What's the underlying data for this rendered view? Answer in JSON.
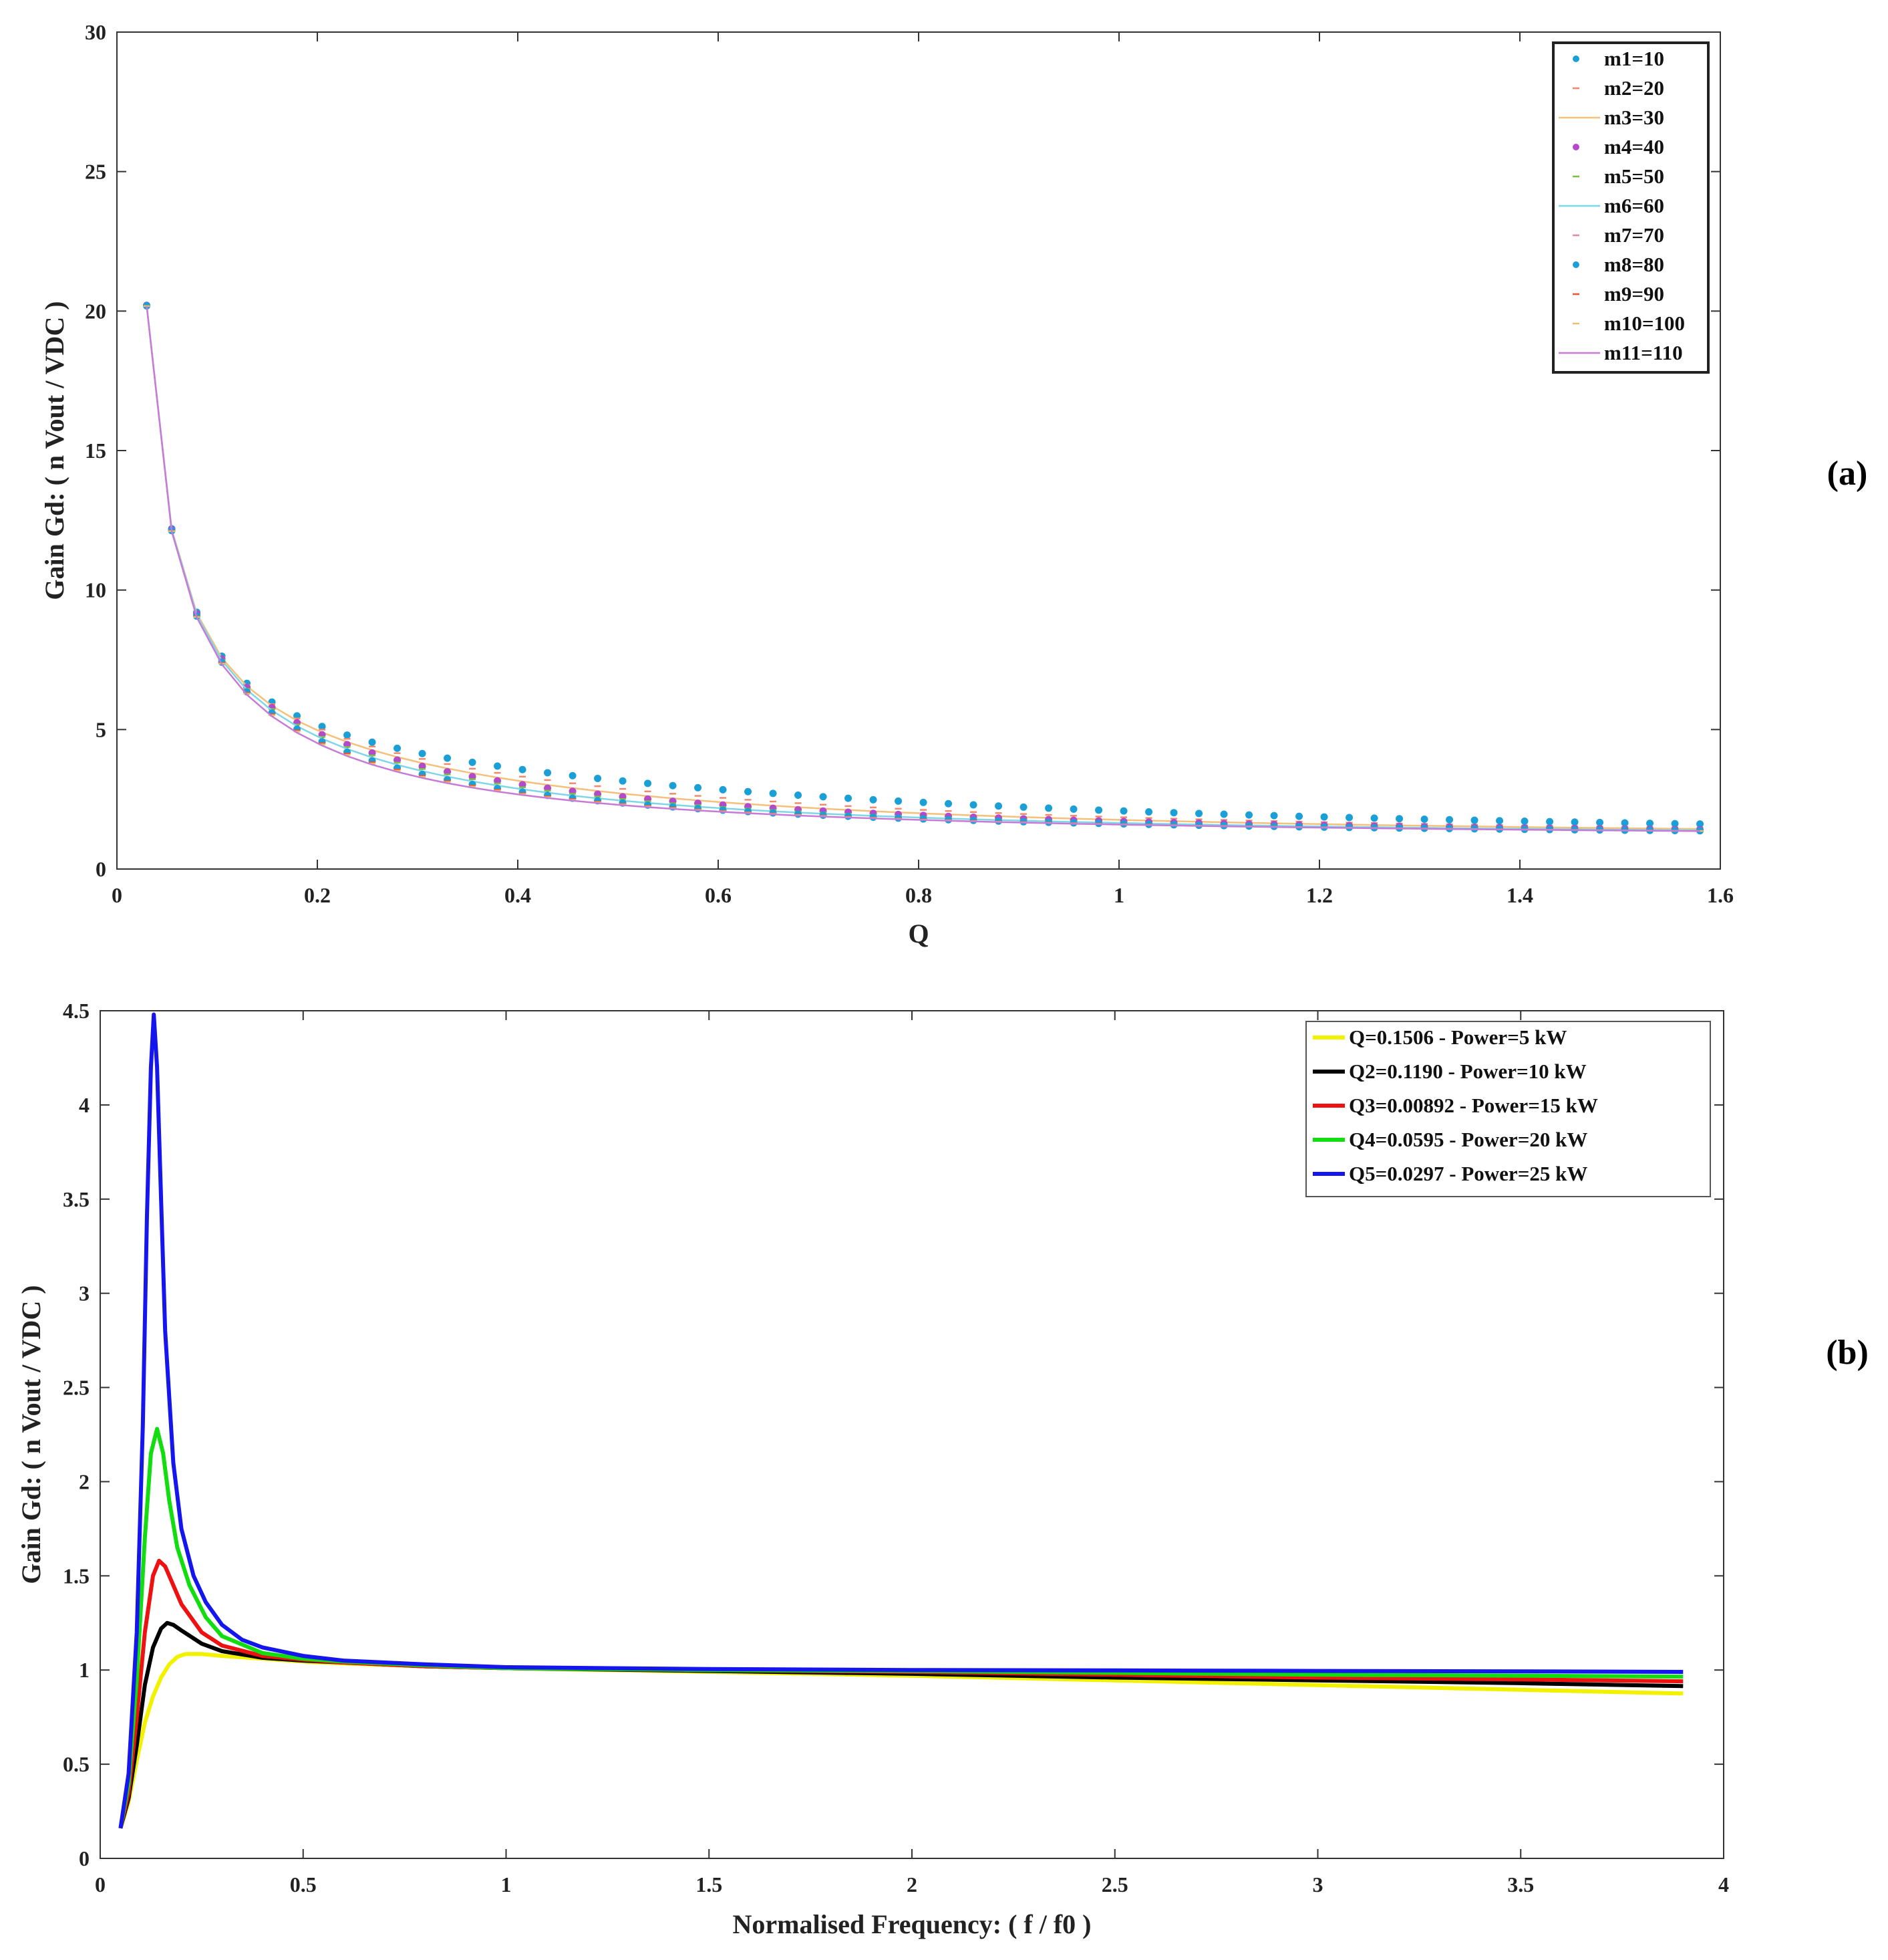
{
  "chart_data": [
    {
      "panel_label": "(a)",
      "type": "scatter",
      "xlabel": "Q",
      "ylabel": "Gain Gd: ( n Vout / VDC )",
      "xlim": [
        0,
        1.6
      ],
      "ylim": [
        0,
        30
      ],
      "xticks": [
        0,
        0.2,
        0.4,
        0.6,
        0.8,
        1,
        1.2,
        1.4,
        1.6
      ],
      "yticks": [
        0,
        5,
        10,
        15,
        20,
        25,
        30
      ],
      "xtick_labels": [
        "0",
        "0.2",
        "0.4",
        "0.6",
        "0.8",
        "1",
        "1.2",
        "1.4",
        "1.6"
      ],
      "ytick_labels": [
        "0",
        "5",
        "10",
        "15",
        "20",
        "25",
        "30"
      ],
      "legend_position": "top-right",
      "q_min": 0.0297,
      "q_step": 0.025,
      "q_count": 63,
      "series": [
        {
          "name": "m1=10",
          "m": 10,
          "marker": "dot",
          "color": "#1a9fd6"
        },
        {
          "name": "m2=20",
          "m": 20,
          "marker": "tick",
          "color": "#f08a6a"
        },
        {
          "name": "m3=30",
          "m": 30,
          "marker": "line",
          "color": "#f5c07a"
        },
        {
          "name": "m4=40",
          "m": 40,
          "marker": "dot",
          "color": "#b34ac9"
        },
        {
          "name": "m5=50",
          "m": 50,
          "marker": "tick",
          "color": "#7ac044"
        },
        {
          "name": "m6=60",
          "m": 60,
          "marker": "line",
          "color": "#7fd6e8"
        },
        {
          "name": "m7=70",
          "m": 70,
          "marker": "tick",
          "color": "#e8889a"
        },
        {
          "name": "m8=80",
          "m": 80,
          "marker": "dot",
          "color": "#1a9fd6"
        },
        {
          "name": "m9=90",
          "m": 90,
          "marker": "tick",
          "color": "#ee5530"
        },
        {
          "name": "m10=100",
          "m": 100,
          "marker": "tick",
          "color": "#e8c070"
        },
        {
          "name": "m11=110",
          "m": 110,
          "marker": "line",
          "color": "#c77ad6"
        }
      ]
    },
    {
      "panel_label": "(b)",
      "type": "line",
      "xlabel": "Normalised Frequency: ( f / f0 )",
      "ylabel": "Gain Gd: ( n Vout / VDC )",
      "xlim": [
        0,
        4
      ],
      "ylim": [
        0,
        4.5
      ],
      "xticks": [
        0,
        0.5,
        1,
        1.5,
        2,
        2.5,
        3,
        3.5,
        4
      ],
      "yticks": [
        0,
        0.5,
        1,
        1.5,
        2,
        2.5,
        3,
        3.5,
        4,
        4.5
      ],
      "xtick_labels": [
        "0",
        "0.5",
        "1",
        "1.5",
        "2",
        "2.5",
        "3",
        "3.5",
        "4"
      ],
      "ytick_labels": [
        "0",
        "0.5",
        "1",
        "1.5",
        "2",
        "2.5",
        "3",
        "3.5",
        "4",
        "4.5"
      ],
      "legend_position": "top-right",
      "f_min": 0.05,
      "f_max": 3.9,
      "series": [
        {
          "name": "Q=0.1506 - Power=5 kW",
          "points": [
            [
              0.05,
              0.16
            ],
            [
              0.07,
              0.3
            ],
            [
              0.09,
              0.52
            ],
            [
              0.11,
              0.72
            ],
            [
              0.13,
              0.86
            ],
            [
              0.15,
              0.96
            ],
            [
              0.17,
              1.03
            ],
            [
              0.19,
              1.07
            ],
            [
              0.21,
              1.085
            ],
            [
              0.25,
              1.085
            ],
            [
              0.3,
              1.075
            ],
            [
              0.4,
              1.06
            ],
            [
              0.5,
              1.045
            ],
            [
              0.6,
              1.035
            ],
            [
              0.8,
              1.02
            ],
            [
              1,
              1.01
            ],
            [
              1.5,
              0.99
            ],
            [
              2,
              0.97
            ],
            [
              2.5,
              0.945
            ],
            [
              3,
              0.92
            ],
            [
              3.5,
              0.895
            ],
            [
              3.9,
              0.875
            ]
          ],
          "color": "#f2f200"
        },
        {
          "name": "Q2=0.1190 - Power=10 kW",
          "points": [
            [
              0.05,
              0.16
            ],
            [
              0.07,
              0.32
            ],
            [
              0.09,
              0.6
            ],
            [
              0.11,
              0.92
            ],
            [
              0.13,
              1.12
            ],
            [
              0.15,
              1.22
            ],
            [
              0.165,
              1.25
            ],
            [
              0.18,
              1.24
            ],
            [
              0.2,
              1.21
            ],
            [
              0.25,
              1.14
            ],
            [
              0.3,
              1.1
            ],
            [
              0.4,
              1.065
            ],
            [
              0.5,
              1.05
            ],
            [
              0.6,
              1.04
            ],
            [
              0.8,
              1.02
            ],
            [
              1,
              1.01
            ],
            [
              1.5,
              0.995
            ],
            [
              2,
              0.98
            ],
            [
              2.5,
              0.96
            ],
            [
              3,
              0.945
            ],
            [
              3.5,
              0.93
            ],
            [
              3.9,
              0.915
            ]
          ],
          "color": "#000000"
        },
        {
          "name": "Q3=0.00892 - Power=15 kW",
          "points": [
            [
              0.05,
              0.16
            ],
            [
              0.07,
              0.35
            ],
            [
              0.09,
              0.75
            ],
            [
              0.11,
              1.2
            ],
            [
              0.13,
              1.5
            ],
            [
              0.145,
              1.58
            ],
            [
              0.16,
              1.55
            ],
            [
              0.18,
              1.45
            ],
            [
              0.2,
              1.35
            ],
            [
              0.25,
              1.2
            ],
            [
              0.3,
              1.13
            ],
            [
              0.4,
              1.075
            ],
            [
              0.5,
              1.055
            ],
            [
              0.6,
              1.04
            ],
            [
              0.8,
              1.02
            ],
            [
              1,
              1.01
            ],
            [
              1.5,
              1
            ],
            [
              2,
              0.99
            ],
            [
              2.5,
              0.975
            ],
            [
              3,
              0.96
            ],
            [
              3.5,
              0.95
            ],
            [
              3.9,
              0.94
            ]
          ],
          "color": "#ee1111"
        },
        {
          "name": "Q4=0.0595 - Power=20 kW",
          "points": [
            [
              0.05,
              0.16
            ],
            [
              0.07,
              0.4
            ],
            [
              0.09,
              0.95
            ],
            [
              0.11,
              1.7
            ],
            [
              0.125,
              2.15
            ],
            [
              0.14,
              2.28
            ],
            [
              0.155,
              2.15
            ],
            [
              0.17,
              1.9
            ],
            [
              0.19,
              1.65
            ],
            [
              0.22,
              1.45
            ],
            [
              0.26,
              1.28
            ],
            [
              0.3,
              1.18
            ],
            [
              0.4,
              1.09
            ],
            [
              0.5,
              1.06
            ],
            [
              0.6,
              1.045
            ],
            [
              0.8,
              1.025
            ],
            [
              1,
              1.01
            ],
            [
              1.5,
              1
            ],
            [
              2,
              0.995
            ],
            [
              2.5,
              0.985
            ],
            [
              3,
              0.975
            ],
            [
              3.5,
              0.97
            ],
            [
              3.9,
              0.965
            ]
          ],
          "color": "#11dd11"
        },
        {
          "name": "Q5=0.0297 - Power=25 kW",
          "points": [
            [
              0.05,
              0.16
            ],
            [
              0.07,
              0.45
            ],
            [
              0.09,
              1.2
            ],
            [
              0.105,
              2.3
            ],
            [
              0.115,
              3.4
            ],
            [
              0.125,
              4.2
            ],
            [
              0.132,
              4.48
            ],
            [
              0.14,
              4.2
            ],
            [
              0.15,
              3.5
            ],
            [
              0.16,
              2.8
            ],
            [
              0.18,
              2.1
            ],
            [
              0.2,
              1.75
            ],
            [
              0.23,
              1.5
            ],
            [
              0.26,
              1.36
            ],
            [
              0.3,
              1.24
            ],
            [
              0.35,
              1.16
            ],
            [
              0.4,
              1.12
            ],
            [
              0.5,
              1.075
            ],
            [
              0.6,
              1.05
            ],
            [
              0.8,
              1.03
            ],
            [
              1,
              1.015
            ],
            [
              1.5,
              1.005
            ],
            [
              2,
              1
            ],
            [
              2.5,
              0.998
            ],
            [
              3,
              0.995
            ],
            [
              3.5,
              0.993
            ],
            [
              3.9,
              0.99
            ]
          ],
          "color": "#1515ee"
        }
      ]
    }
  ]
}
